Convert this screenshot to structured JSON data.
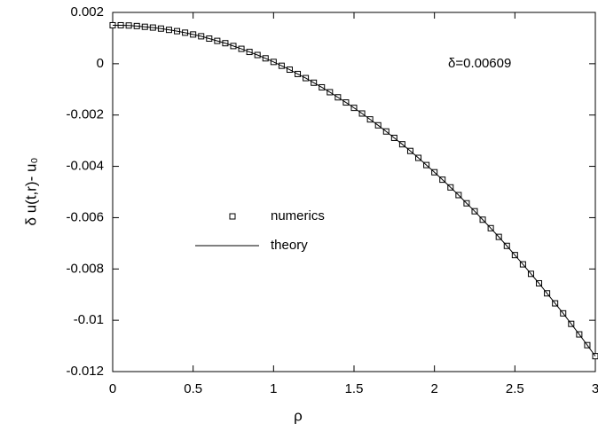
{
  "chart_data": {
    "type": "line",
    "xlabel": "ρ",
    "ylabel": "δ u(t,r)- u₀",
    "annotation": "δ=0.00609",
    "x": [
      0,
      0.05,
      0.1,
      0.15,
      0.2,
      0.25,
      0.3,
      0.35,
      0.4,
      0.45,
      0.5,
      0.55,
      0.6,
      0.65,
      0.7,
      0.75,
      0.8,
      0.85,
      0.9,
      0.95,
      1,
      1.05,
      1.1,
      1.15,
      1.2,
      1.25,
      1.3,
      1.35,
      1.4,
      1.45,
      1.5,
      1.55,
      1.6,
      1.65,
      1.7,
      1.75,
      1.8,
      1.85,
      1.9,
      1.95,
      2,
      2.05,
      2.1,
      2.15,
      2.2,
      2.25,
      2.3,
      2.35,
      2.4,
      2.45,
      2.5,
      2.55,
      2.6,
      2.65,
      2.7,
      2.75,
      2.8,
      2.85,
      2.9,
      2.95,
      3
    ],
    "series": [
      {
        "name": "numerics",
        "color": "#000000",
        "marker": "square",
        "values": [
          0.0015,
          0.0015,
          0.00149,
          0.00147,
          0.00144,
          0.00141,
          0.00137,
          0.00132,
          0.00127,
          0.00121,
          0.00114,
          0.00107,
          0.00098,
          0.00089,
          0.0008,
          0.00069,
          0.00058,
          0.00046,
          0.00034,
          0.00021,
          7e-05,
          -8e-05,
          -0.00023,
          -0.0004,
          -0.00056,
          -0.00074,
          -0.00092,
          -0.00111,
          -0.00131,
          -0.00151,
          -0.00172,
          -0.00194,
          -0.00217,
          -0.0024,
          -0.00264,
          -0.00289,
          -0.00314,
          -0.0034,
          -0.00367,
          -0.00395,
          -0.00423,
          -0.00452,
          -0.00482,
          -0.00512,
          -0.00544,
          -0.00575,
          -0.00608,
          -0.00641,
          -0.00675,
          -0.0071,
          -0.00746,
          -0.00782,
          -0.00819,
          -0.00856,
          -0.00895,
          -0.00934,
          -0.00973,
          -0.01014,
          -0.01055,
          -0.01097,
          -0.0114
        ]
      },
      {
        "name": "theory",
        "color": "#000000",
        "marker": "none",
        "values": [
          0.0015,
          0.0015,
          0.00149,
          0.00147,
          0.00144,
          0.00141,
          0.00137,
          0.00132,
          0.00127,
          0.00121,
          0.00114,
          0.00107,
          0.00098,
          0.00089,
          0.0008,
          0.00069,
          0.00058,
          0.00046,
          0.00034,
          0.00021,
          7e-05,
          -8e-05,
          -0.00023,
          -0.0004,
          -0.00056,
          -0.00074,
          -0.00092,
          -0.00111,
          -0.00131,
          -0.00151,
          -0.00172,
          -0.00194,
          -0.00217,
          -0.0024,
          -0.00264,
          -0.00289,
          -0.00314,
          -0.0034,
          -0.00367,
          -0.00395,
          -0.00423,
          -0.00452,
          -0.00482,
          -0.00512,
          -0.00544,
          -0.00575,
          -0.00608,
          -0.00641,
          -0.00675,
          -0.0071,
          -0.00746,
          -0.00782,
          -0.00819,
          -0.00856,
          -0.00895,
          -0.00934,
          -0.00973,
          -0.01014,
          -0.01055,
          -0.01097,
          -0.0114
        ]
      }
    ],
    "xlim": [
      0,
      3
    ],
    "ylim": [
      -0.012,
      0.002
    ],
    "xticks": [
      0,
      0.5,
      1,
      1.5,
      2,
      2.5,
      3
    ],
    "yticks": [
      0.002,
      0,
      -0.002,
      -0.004,
      -0.006,
      -0.008,
      -0.01,
      -0.012
    ],
    "grid": false
  }
}
